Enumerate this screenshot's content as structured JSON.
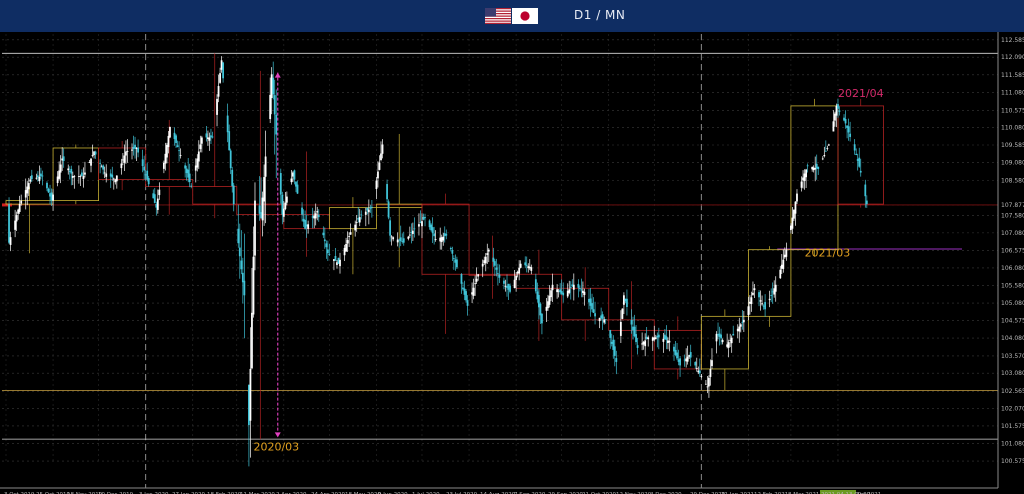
{
  "header": {
    "title": "D1 / MN"
  },
  "chart_data": {
    "type": "candlestick",
    "instrument_flags": [
      "us-flag-icon",
      "japan-flag-icon"
    ],
    "ylim": [
      100.49,
      112.75
    ],
    "yticks": [
      "112.585",
      "112.090",
      "111.585",
      "111.080",
      "110.575",
      "110.080",
      "109.585",
      "109.080",
      "108.580",
      "107.877",
      "107.580",
      "107.080",
      "106.575",
      "106.080",
      "105.580",
      "105.080",
      "104.575",
      "104.080",
      "103.570",
      "103.080",
      "102.565",
      "102.070",
      "101.575",
      "101.080",
      "100.575"
    ],
    "current_price": "107.877",
    "xticks": [
      "3 Oct 2019",
      "25 Oct 2019",
      "18 Nov 2019",
      "10 Dec 2019",
      "3 Jan 2020",
      "27 Jan 2020",
      "18 Feb 2020",
      "11 Mar 2020",
      "2 Apr 2020",
      "24 Apr 2020",
      "18 May 2020",
      "9 Jun 2020",
      "1 Jul 2020",
      "23 Jul 2020",
      "14 Aug 2020",
      "7 Sep 2020",
      "29 Sep 2020",
      "21 Oct 2020",
      "12 Nov 2020",
      "4 Dec 2020",
      "29 Dec 2020",
      "21 Jan 2021",
      "12 Feb 2021",
      "8 Mar 2021",
      "2021.04.13 00:00",
      "Apr 2021"
    ],
    "annotations": [
      {
        "text": "2021/04",
        "date": "2021-04-01",
        "price": 110.95,
        "color": "#d42b6b"
      },
      {
        "text": "2021/03",
        "date": "2021-03-10",
        "price": 106.41,
        "color": "#e0a020"
      },
      {
        "text": "2020/03",
        "date": "2020-03-12",
        "price": 100.87,
        "color": "#e0a020"
      }
    ],
    "period_separators": [
      "2020-01-01",
      "2021-01-01"
    ],
    "horizontal_levels": [
      112.2,
      102.59,
      101.2
    ],
    "monthly_boxes": [
      {
        "month": "2019-10",
        "open": 107.9,
        "close": 108.0,
        "high": 108.4,
        "low": 106.5,
        "color": "#c9b233"
      },
      {
        "month": "2019-11",
        "open": 108.0,
        "close": 109.5,
        "high": 109.6,
        "low": 107.9,
        "color": "#c9b233"
      },
      {
        "month": "2019-12",
        "open": 109.5,
        "close": 108.6,
        "high": 109.7,
        "low": 108.3,
        "color": "#b22222"
      },
      {
        "month": "2020-01",
        "open": 108.6,
        "close": 108.4,
        "high": 110.3,
        "low": 107.6,
        "color": "#b22222"
      },
      {
        "month": "2020-02",
        "open": 108.4,
        "close": 107.9,
        "high": 112.2,
        "low": 107.5,
        "color": "#b22222"
      },
      {
        "month": "2020-03",
        "open": 107.9,
        "close": 107.6,
        "high": 111.7,
        "low": 101.2,
        "color": "#b22222"
      },
      {
        "month": "2020-04",
        "open": 107.6,
        "close": 107.2,
        "high": 109.4,
        "low": 106.4,
        "color": "#b22222"
      },
      {
        "month": "2020-05",
        "open": 107.2,
        "close": 107.8,
        "high": 108.1,
        "low": 105.9,
        "color": "#c9b233"
      },
      {
        "month": "2020-06",
        "open": 107.8,
        "close": 107.9,
        "high": 109.9,
        "low": 106.1,
        "color": "#c9b233"
      },
      {
        "month": "2020-07",
        "open": 107.9,
        "close": 105.9,
        "high": 108.2,
        "low": 104.2,
        "color": "#b22222"
      },
      {
        "month": "2020-08",
        "open": 105.9,
        "close": 105.9,
        "high": 107.0,
        "low": 105.2,
        "color": "#b22222"
      },
      {
        "month": "2020-09",
        "open": 105.9,
        "close": 105.5,
        "high": 106.6,
        "low": 104.0,
        "color": "#b22222"
      },
      {
        "month": "2020-10",
        "open": 105.5,
        "close": 104.6,
        "high": 106.1,
        "low": 104.0,
        "color": "#b22222"
      },
      {
        "month": "2020-11",
        "open": 104.6,
        "close": 104.3,
        "high": 105.7,
        "low": 103.2,
        "color": "#b22222"
      },
      {
        "month": "2020-12",
        "open": 104.3,
        "close": 103.2,
        "high": 104.7,
        "low": 102.9,
        "color": "#b22222"
      },
      {
        "month": "2021-01",
        "open": 103.2,
        "close": 104.7,
        "high": 104.9,
        "low": 102.6,
        "color": "#c9b233"
      },
      {
        "month": "2021-02",
        "open": 104.7,
        "close": 106.6,
        "high": 106.7,
        "low": 104.4,
        "color": "#c9b233"
      },
      {
        "month": "2021-03",
        "open": 106.6,
        "close": 110.7,
        "high": 110.9,
        "low": 106.4,
        "color": "#c9b233"
      },
      {
        "month": "2021-04",
        "open": 110.7,
        "close": 107.9,
        "high": 110.9,
        "low": 107.8,
        "color": "#b22222"
      }
    ],
    "daily_path": [
      [
        "2019-10-03",
        106.8
      ],
      [
        "2019-10-10",
        107.9
      ],
      [
        "2019-10-17",
        108.6
      ],
      [
        "2019-10-25",
        108.7
      ],
      [
        "2019-10-31",
        108.0
      ],
      [
        "2019-11-07",
        109.2
      ],
      [
        "2019-11-14",
        108.7
      ],
      [
        "2019-11-21",
        108.7
      ],
      [
        "2019-11-28",
        109.4
      ],
      [
        "2019-12-05",
        108.8
      ],
      [
        "2019-12-12",
        108.6
      ],
      [
        "2019-12-19",
        109.4
      ],
      [
        "2019-12-26",
        109.5
      ],
      [
        "2020-01-02",
        108.6
      ],
      [
        "2020-01-08",
        107.8
      ],
      [
        "2020-01-17",
        110.1
      ],
      [
        "2020-01-24",
        109.3
      ],
      [
        "2020-01-31",
        108.4
      ],
      [
        "2020-02-07",
        109.8
      ],
      [
        "2020-02-14",
        109.8
      ],
      [
        "2020-02-20",
        112.0
      ],
      [
        "2020-02-28",
        107.9
      ],
      [
        "2020-03-06",
        105.3
      ],
      [
        "2020-03-09",
        101.6
      ],
      [
        "2020-03-13",
        108.0
      ],
      [
        "2020-03-17",
        107.5
      ],
      [
        "2020-03-24",
        111.6
      ],
      [
        "2020-03-31",
        107.6
      ],
      [
        "2020-04-07",
        108.8
      ],
      [
        "2020-04-15",
        107.2
      ],
      [
        "2020-04-23",
        107.7
      ],
      [
        "2020-04-30",
        106.5
      ],
      [
        "2020-05-07",
        106.2
      ],
      [
        "2020-05-15",
        107.1
      ],
      [
        "2020-05-22",
        107.6
      ],
      [
        "2020-05-29",
        107.8
      ],
      [
        "2020-06-05",
        109.6
      ],
      [
        "2020-06-10",
        107.0
      ],
      [
        "2020-06-19",
        106.8
      ],
      [
        "2020-06-26",
        107.2
      ],
      [
        "2020-07-03",
        107.5
      ],
      [
        "2020-07-10",
        106.9
      ],
      [
        "2020-07-17",
        107.0
      ],
      [
        "2020-07-24",
        106.1
      ],
      [
        "2020-07-31",
        105.0
      ],
      [
        "2020-08-07",
        105.9
      ],
      [
        "2020-08-14",
        106.6
      ],
      [
        "2020-08-21",
        105.8
      ],
      [
        "2020-08-28",
        105.4
      ],
      [
        "2020-09-04",
        106.2
      ],
      [
        "2020-09-11",
        106.1
      ],
      [
        "2020-09-18",
        104.5
      ],
      [
        "2020-09-25",
        105.6
      ],
      [
        "2020-10-02",
        105.3
      ],
      [
        "2020-10-09",
        105.6
      ],
      [
        "2020-10-16",
        105.4
      ],
      [
        "2020-10-23",
        104.7
      ],
      [
        "2020-10-30",
        104.6
      ],
      [
        "2020-11-06",
        103.4
      ],
      [
        "2020-11-11",
        105.3
      ],
      [
        "2020-11-20",
        103.8
      ],
      [
        "2020-11-27",
        104.1
      ],
      [
        "2020-12-04",
        104.1
      ],
      [
        "2020-12-11",
        104.0
      ],
      [
        "2020-12-18",
        103.3
      ],
      [
        "2020-12-24",
        103.6
      ],
      [
        "2021-01-05",
        102.7
      ],
      [
        "2021-01-11",
        104.2
      ],
      [
        "2021-01-18",
        103.9
      ],
      [
        "2021-01-29",
        104.6
      ],
      [
        "2021-02-05",
        105.5
      ],
      [
        "2021-02-12",
        104.9
      ],
      [
        "2021-02-19",
        105.6
      ],
      [
        "2021-02-26",
        106.6
      ],
      [
        "2021-03-05",
        108.2
      ],
      [
        "2021-03-12",
        109.0
      ],
      [
        "2021-03-19",
        108.9
      ],
      [
        "2021-03-26",
        109.6
      ],
      [
        "2021-03-31",
        110.7
      ],
      [
        "2021-04-06",
        110.2
      ],
      [
        "2021-04-13",
        109.3
      ],
      [
        "2021-04-16",
        108.8
      ],
      [
        "2021-04-20",
        107.9
      ]
    ]
  }
}
